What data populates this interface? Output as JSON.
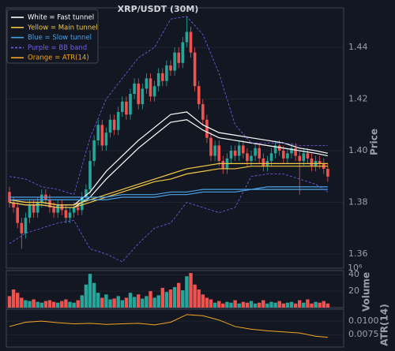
{
  "chart_data": {
    "type": "candlestick",
    "title": "XRP/USDT (30M)",
    "price_label": "Price",
    "volume_label": "Volume",
    "volume_offset": "10⁶",
    "atr_label": "ATR(14)",
    "up_color": "#26a69a",
    "down_color": "#ef5350",
    "grid": true,
    "open": [
      1.384,
      1.38,
      1.378,
      1.372,
      1.368,
      1.374,
      1.379,
      1.376,
      1.38,
      1.383,
      1.381,
      1.378,
      1.376,
      1.379,
      1.377,
      1.374,
      1.376,
      1.378,
      1.377,
      1.382,
      1.385,
      1.396,
      1.404,
      1.41,
      1.402,
      1.407,
      1.412,
      1.408,
      1.415,
      1.419,
      1.414,
      1.422,
      1.426,
      1.418,
      1.424,
      1.428,
      1.421,
      1.425,
      1.43,
      1.427,
      1.433,
      1.431,
      1.438,
      1.434,
      1.442,
      1.446,
      1.438,
      1.425,
      1.418,
      1.412,
      1.405,
      1.398,
      1.402,
      1.396,
      1.393,
      1.397,
      1.4,
      1.398,
      1.402,
      1.399,
      1.396,
      1.398,
      1.401,
      1.397,
      1.394,
      1.396,
      1.399,
      1.402,
      1.4,
      1.397,
      1.399,
      1.401,
      1.398,
      1.396,
      1.399,
      1.397,
      1.394,
      1.396,
      1.395,
      1.393
    ],
    "high": [
      1.386,
      1.382,
      1.38,
      1.374,
      1.376,
      1.381,
      1.381,
      1.382,
      1.385,
      1.385,
      1.383,
      1.38,
      1.381,
      1.381,
      1.379,
      1.378,
      1.38,
      1.38,
      1.384,
      1.387,
      1.4,
      1.406,
      1.412,
      1.412,
      1.409,
      1.414,
      1.414,
      1.417,
      1.421,
      1.421,
      1.424,
      1.428,
      1.428,
      1.426,
      1.43,
      1.43,
      1.427,
      1.432,
      1.432,
      1.435,
      1.435,
      1.44,
      1.44,
      1.444,
      1.452,
      1.448,
      1.44,
      1.427,
      1.42,
      1.414,
      1.407,
      1.404,
      1.404,
      1.398,
      1.399,
      1.402,
      1.402,
      1.404,
      1.404,
      1.401,
      1.4,
      1.403,
      1.403,
      1.399,
      1.398,
      1.401,
      1.404,
      1.404,
      1.402,
      1.401,
      1.403,
      1.403,
      1.4,
      1.401,
      1.401,
      1.399,
      1.398,
      1.398,
      1.397,
      1.395
    ],
    "low": [
      1.378,
      1.376,
      1.37,
      1.362,
      1.366,
      1.372,
      1.374,
      1.374,
      1.378,
      1.379,
      1.376,
      1.374,
      1.374,
      1.375,
      1.372,
      1.372,
      1.374,
      1.375,
      1.375,
      1.38,
      1.383,
      1.394,
      1.402,
      1.4,
      1.4,
      1.405,
      1.406,
      1.406,
      1.413,
      1.412,
      1.412,
      1.42,
      1.416,
      1.416,
      1.422,
      1.419,
      1.419,
      1.423,
      1.425,
      1.425,
      1.429,
      1.429,
      1.432,
      1.432,
      1.44,
      1.436,
      1.423,
      1.416,
      1.41,
      1.403,
      1.396,
      1.396,
      1.394,
      1.391,
      1.391,
      1.395,
      1.396,
      1.396,
      1.397,
      1.394,
      1.394,
      1.396,
      1.395,
      1.392,
      1.392,
      1.394,
      1.397,
      1.398,
      1.395,
      1.395,
      1.397,
      1.396,
      1.383,
      1.394,
      1.395,
      1.392,
      1.392,
      1.393,
      1.391,
      1.388
    ],
    "close": [
      1.38,
      1.378,
      1.372,
      1.368,
      1.374,
      1.379,
      1.376,
      1.38,
      1.383,
      1.381,
      1.378,
      1.376,
      1.379,
      1.377,
      1.374,
      1.376,
      1.378,
      1.377,
      1.382,
      1.385,
      1.396,
      1.404,
      1.41,
      1.402,
      1.407,
      1.412,
      1.408,
      1.415,
      1.419,
      1.414,
      1.422,
      1.426,
      1.418,
      1.424,
      1.428,
      1.421,
      1.425,
      1.43,
      1.427,
      1.433,
      1.431,
      1.438,
      1.434,
      1.442,
      1.446,
      1.438,
      1.425,
      1.418,
      1.412,
      1.405,
      1.398,
      1.402,
      1.396,
      1.393,
      1.397,
      1.4,
      1.398,
      1.402,
      1.399,
      1.396,
      1.398,
      1.401,
      1.397,
      1.394,
      1.396,
      1.399,
      1.402,
      1.4,
      1.397,
      1.399,
      1.401,
      1.398,
      1.396,
      1.399,
      1.397,
      1.394,
      1.396,
      1.395,
      1.393,
      1.39
    ],
    "volume": [
      14,
      22,
      18,
      12,
      9,
      8,
      10,
      7,
      6,
      8,
      9,
      7,
      6,
      8,
      10,
      7,
      6,
      9,
      15,
      28,
      41,
      30,
      18,
      12,
      16,
      10,
      11,
      14,
      9,
      12,
      18,
      13,
      16,
      11,
      14,
      20,
      12,
      15,
      24,
      19,
      22,
      25,
      30,
      21,
      38,
      42,
      28,
      22,
      16,
      12,
      10,
      6,
      8,
      5,
      7,
      6,
      9,
      5,
      7,
      6,
      8,
      5,
      6,
      9,
      5,
      7,
      6,
      8,
      5,
      6,
      7,
      5,
      9,
      6,
      10,
      5,
      7,
      6,
      8,
      5
    ],
    "line_x": [
      0,
      4,
      8,
      12,
      16,
      20,
      24,
      28,
      32,
      36,
      40,
      44,
      48,
      52,
      56,
      60,
      64,
      68,
      72,
      76,
      79
    ],
    "tunnels": [
      {
        "name": "White = Fast tunnel",
        "color": "#ffffff",
        "dashed": false,
        "upper": [
          1.381,
          1.38,
          1.38,
          1.379,
          1.379,
          1.384,
          1.392,
          1.398,
          1.404,
          1.409,
          1.414,
          1.415,
          1.41,
          1.407,
          1.406,
          1.405,
          1.404,
          1.403,
          1.401,
          1.4,
          1.399
        ],
        "lower": [
          1.38,
          1.379,
          1.379,
          1.378,
          1.378,
          1.382,
          1.389,
          1.395,
          1.401,
          1.406,
          1.411,
          1.412,
          1.408,
          1.405,
          1.404,
          1.403,
          1.402,
          1.401,
          1.4,
          1.399,
          1.398
        ]
      },
      {
        "name": "Yellow = Main tunnel",
        "color": "#f5c842",
        "dashed": false,
        "upper": [
          1.381,
          1.38,
          1.38,
          1.379,
          1.379,
          1.381,
          1.383,
          1.385,
          1.387,
          1.389,
          1.391,
          1.393,
          1.394,
          1.395,
          1.395,
          1.395,
          1.395,
          1.395,
          1.395,
          1.395,
          1.395
        ],
        "lower": [
          1.38,
          1.379,
          1.379,
          1.378,
          1.378,
          1.38,
          1.382,
          1.384,
          1.386,
          1.388,
          1.389,
          1.391,
          1.392,
          1.393,
          1.393,
          1.394,
          1.394,
          1.394,
          1.394,
          1.394,
          1.394
        ]
      },
      {
        "name": "Blue = Slow tunnel",
        "color": "#4aa3e8",
        "dashed": false,
        "upper": [
          1.382,
          1.382,
          1.382,
          1.382,
          1.382,
          1.382,
          1.382,
          1.383,
          1.383,
          1.383,
          1.384,
          1.384,
          1.385,
          1.385,
          1.385,
          1.385,
          1.386,
          1.386,
          1.386,
          1.386,
          1.386
        ],
        "lower": [
          1.381,
          1.381,
          1.381,
          1.381,
          1.381,
          1.381,
          1.381,
          1.382,
          1.382,
          1.382,
          1.383,
          1.383,
          1.384,
          1.384,
          1.384,
          1.385,
          1.385,
          1.385,
          1.385,
          1.385,
          1.385
        ]
      },
      {
        "name": "Purple = BB band",
        "color": "#7b5cf0",
        "dashed": true,
        "upper": [
          1.39,
          1.389,
          1.386,
          1.385,
          1.383,
          1.405,
          1.42,
          1.428,
          1.436,
          1.44,
          1.451,
          1.452,
          1.445,
          1.43,
          1.41,
          1.403,
          1.403,
          1.403,
          1.402,
          1.402,
          1.402
        ],
        "lower": [
          1.364,
          1.368,
          1.37,
          1.372,
          1.373,
          1.362,
          1.36,
          1.357,
          1.364,
          1.37,
          1.372,
          1.38,
          1.378,
          1.376,
          1.378,
          1.39,
          1.391,
          1.391,
          1.389,
          1.387,
          1.384
        ]
      }
    ],
    "atr": {
      "name": "Orange = ATR(14)",
      "color": "#f5a623",
      "values": [
        0.009,
        0.0098,
        0.01,
        0.0097,
        0.0095,
        0.0096,
        0.0094,
        0.0095,
        0.0096,
        0.0093,
        0.0098,
        0.0112,
        0.011,
        0.0102,
        0.009,
        0.0085,
        0.0082,
        0.008,
        0.0078,
        0.0072,
        0.007
      ]
    },
    "ylim": [
      1.3545,
      1.4553
    ],
    "yticks": [
      {
        "value": 1.36,
        "label": "1.36"
      },
      {
        "value": 1.38,
        "label": "1.38"
      },
      {
        "value": 1.4,
        "label": "1.40"
      },
      {
        "value": 1.42,
        "label": "1.42"
      },
      {
        "value": 1.44,
        "label": "1.44"
      }
    ],
    "volume_ylim": [
      0,
      45
    ],
    "volume_yticks": [
      20,
      40
    ],
    "atr_ylim": [
      0.0052,
      0.0122
    ],
    "atr_yticks": [
      {
        "value": 0.0075,
        "label": "0.0075"
      },
      {
        "value": 0.01,
        "label": "0.0100"
      }
    ]
  }
}
